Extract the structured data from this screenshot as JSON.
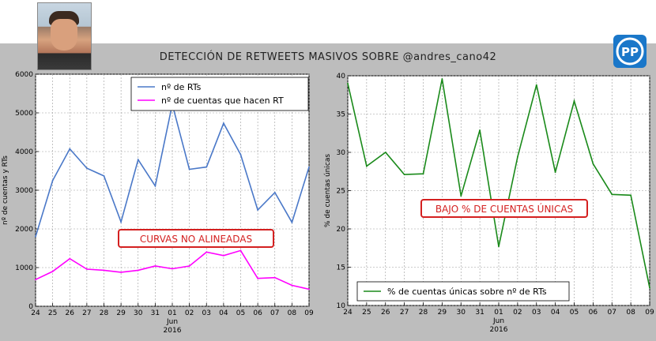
{
  "header": {
    "title": "DETECCIÓN DE RETWEETS MASIVOS SOBRE @andres_cano42",
    "logo_text": "PP"
  },
  "colors": {
    "rts": "#4a78c8",
    "cuentas": "#ff00ff",
    "pct": "#1a8a1a",
    "callout_border": "#d42020",
    "callout_text": "#d42020",
    "band": "#bdbdbd"
  },
  "chart_data": [
    {
      "type": "line",
      "x": [
        "24",
        "25",
        "26",
        "27",
        "28",
        "29",
        "30",
        "31",
        "01",
        "02",
        "03",
        "04",
        "05",
        "06",
        "07",
        "08",
        "09"
      ],
      "x_sublabel_month": "Jun",
      "x_sublabel_year": "2016",
      "ylabel": "nº de cuentas y RTs",
      "ylim": [
        0,
        6000
      ],
      "yticks": [
        "0",
        "1000",
        "2000",
        "3000",
        "4000",
        "5000",
        "6000"
      ],
      "grid": true,
      "legend_position": "top-center",
      "series": [
        {
          "name": "nº de RTs",
          "values": [
            1800,
            3250,
            4070,
            3570,
            3370,
            2180,
            3790,
            3110,
            5220,
            3540,
            3600,
            4730,
            3920,
            2490,
            2940,
            2170,
            3600
          ]
        },
        {
          "name": "nº de cuentas que hacen RT",
          "values": [
            690,
            900,
            1230,
            960,
            930,
            880,
            930,
            1040,
            970,
            1040,
            1400,
            1310,
            1440,
            720,
            740,
            540,
            440
          ]
        }
      ],
      "annotation": "CURVAS NO ALINEADAS"
    },
    {
      "type": "line",
      "x": [
        "24",
        "25",
        "26",
        "27",
        "28",
        "29",
        "30",
        "31",
        "01",
        "02",
        "03",
        "04",
        "05",
        "06",
        "07",
        "08",
        "09"
      ],
      "x_sublabel_month": "Jun",
      "x_sublabel_year": "2016",
      "ylabel": "% de cuentas únicas",
      "ylim": [
        10,
        40
      ],
      "yticks": [
        "10",
        "15",
        "20",
        "25",
        "30",
        "35",
        "40"
      ],
      "grid": true,
      "legend_position": "bottom-left",
      "series": [
        {
          "name": "% de cuentas únicas sobre nº de RTs",
          "values": [
            39.0,
            28.2,
            30.0,
            27.1,
            27.2,
            39.6,
            24.3,
            32.9,
            17.7,
            29.4,
            38.8,
            27.4,
            36.7,
            28.5,
            24.5,
            24.4,
            12.3
          ]
        }
      ],
      "annotation": "BAJO % DE CUENTAS ÚNICAS"
    }
  ]
}
